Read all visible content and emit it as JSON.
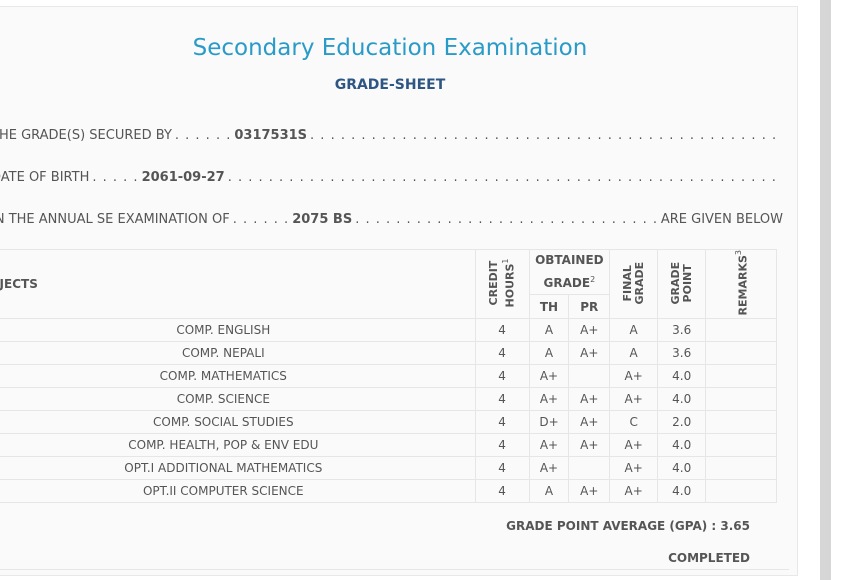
{
  "header": {
    "title": "Secondary Education Examination",
    "subtitle": "GRADE-SHEET"
  },
  "info": {
    "secured_by_label": "THE GRADE(S) SECURED BY",
    "symbol_no": "0317531S",
    "dob_label": "DATE OF BIRTH",
    "dob": "2061-09-27",
    "exam_label": "IN THE ANNUAL SE EXAMINATION OF",
    "exam_year": "2075 BS",
    "exam_tail": "ARE GIVEN BELOW"
  },
  "table": {
    "col_subjects": "SUBJECTS",
    "col_credit": "CREDIT HOURS",
    "col_credit_sup": "1",
    "col_obtained": "OBTAINED GRADE",
    "col_obtained_sup": "2",
    "col_th": "TH",
    "col_pr": "PR",
    "col_final": "FINAL GRADE",
    "col_gp": "GRADE POINT",
    "col_remarks": "REMARKS",
    "col_remarks_sup": "3",
    "rows": [
      {
        "subject": "COMP. ENGLISH",
        "credit": "4",
        "th": "A",
        "pr": "A+",
        "final": "A",
        "gp": "3.6",
        "remarks": ""
      },
      {
        "subject": "COMP. NEPALI",
        "credit": "4",
        "th": "A",
        "pr": "A+",
        "final": "A",
        "gp": "3.6",
        "remarks": ""
      },
      {
        "subject": "COMP. MATHEMATICS",
        "credit": "4",
        "th": "A+",
        "pr": "",
        "final": "A+",
        "gp": "4.0",
        "remarks": ""
      },
      {
        "subject": "COMP. SCIENCE",
        "credit": "4",
        "th": "A+",
        "pr": "A+",
        "final": "A+",
        "gp": "4.0",
        "remarks": ""
      },
      {
        "subject": "COMP. SOCIAL STUDIES",
        "credit": "4",
        "th": "D+",
        "pr": "A+",
        "final": "C",
        "gp": "2.0",
        "remarks": ""
      },
      {
        "subject": "COMP. HEALTH, POP & ENV EDU",
        "credit": "4",
        "th": "A+",
        "pr": "A+",
        "final": "A+",
        "gp": "4.0",
        "remarks": ""
      },
      {
        "subject": "OPT.I ADDITIONAL MATHEMATICS",
        "credit": "4",
        "th": "A+",
        "pr": "",
        "final": "A+",
        "gp": "4.0",
        "remarks": ""
      },
      {
        "subject": "OPT.II COMPUTER SCIENCE",
        "credit": "4",
        "th": "A",
        "pr": "A+",
        "final": "A+",
        "gp": "4.0",
        "remarks": ""
      }
    ]
  },
  "summary": {
    "gpa_text": "GRADE POINT AVERAGE (GPA) : 3.65",
    "status": "COMPLETED"
  },
  "colors": {
    "title": "#2a9bc8",
    "subtitle": "#2d5682",
    "text": "#555555"
  }
}
